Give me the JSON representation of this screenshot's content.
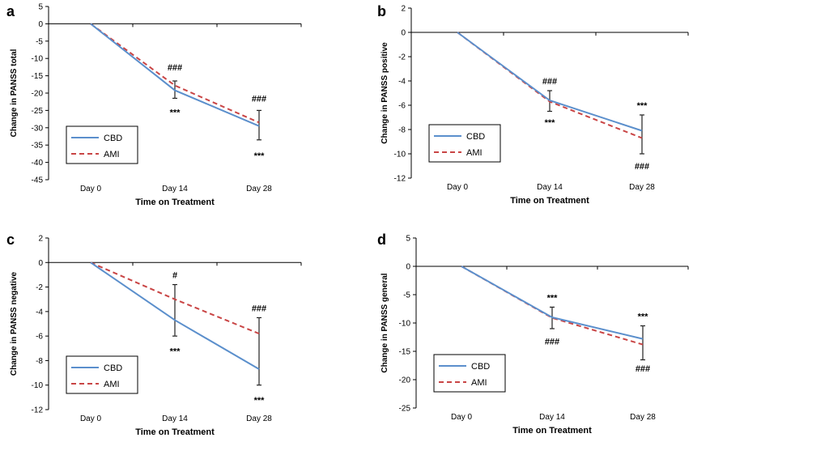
{
  "figure": {
    "colors": {
      "cbd": "#5b8fcc",
      "ami": "#c94545"
    }
  },
  "chart_data": [
    {
      "letter": "a",
      "type": "line",
      "ylabel": "Change in PANSS total",
      "xlabel": "Time on Treatment",
      "categories": [
        "Day 0",
        "Day 14",
        "Day 28"
      ],
      "ylim": [
        -45,
        5
      ],
      "yticks": [
        "5",
        "0",
        "-5",
        "-10",
        "-15",
        "-20",
        "-25",
        "-30",
        "-35",
        "-40",
        "-45"
      ],
      "grid": false,
      "legend_position": "bottom-left",
      "series": [
        {
          "name": "CBD",
          "values": [
            0,
            -19.2,
            -29.5
          ],
          "style": "solid"
        },
        {
          "name": "AMI",
          "values": [
            0,
            -17.8,
            -28.5
          ],
          "style": "dashed"
        }
      ],
      "error_bars": [
        {
          "category": "Day 14",
          "low": -21.5,
          "high": -16.5
        },
        {
          "category": "Day 28",
          "low": -33.5,
          "high": -25.0
        }
      ],
      "annotations": [
        {
          "category": "Day 14",
          "text": "###",
          "y": -12.5
        },
        {
          "category": "Day 14",
          "text": "***",
          "y": -25.5
        },
        {
          "category": "Day 28",
          "text": "###",
          "y": -21.5
        },
        {
          "category": "Day 28",
          "text": "***",
          "y": -38.0
        }
      ]
    },
    {
      "letter": "b",
      "type": "line",
      "ylabel": "Change in PANSS positive",
      "xlabel": "Time on Treatment",
      "categories": [
        "Day 0",
        "Day 14",
        "Day 28"
      ],
      "ylim": [
        -12,
        2
      ],
      "yticks": [
        "2",
        "0",
        "-2",
        "-4",
        "-6",
        "-8",
        "-10",
        "-12"
      ],
      "grid": false,
      "legend_position": "bottom-left",
      "series": [
        {
          "name": "CBD",
          "values": [
            0,
            -5.6,
            -8.1
          ],
          "style": "solid"
        },
        {
          "name": "AMI",
          "values": [
            0,
            -5.7,
            -8.7
          ],
          "style": "dashed"
        }
      ],
      "error_bars": [
        {
          "category": "Day 14",
          "low": -6.5,
          "high": -4.8
        },
        {
          "category": "Day 28",
          "low": -10.0,
          "high": -6.8
        }
      ],
      "annotations": [
        {
          "category": "Day 14",
          "text": "###",
          "y": -4.0
        },
        {
          "category": "Day 14",
          "text": "***",
          "y": -7.4
        },
        {
          "category": "Day 28",
          "text": "***",
          "y": -6.0
        },
        {
          "category": "Day 28",
          "text": "###",
          "y": -11.0
        }
      ]
    },
    {
      "letter": "c",
      "type": "line",
      "ylabel": "Change in PANSS negative",
      "xlabel": "Time on Treatment",
      "categories": [
        "Day 0",
        "Day 14",
        "Day 28"
      ],
      "ylim": [
        -12,
        2
      ],
      "yticks": [
        "2",
        "0",
        "-2",
        "-4",
        "-6",
        "-8",
        "-10",
        "-12"
      ],
      "grid": false,
      "legend_position": "bottom-left",
      "series": [
        {
          "name": "CBD",
          "values": [
            0,
            -4.7,
            -8.7
          ],
          "style": "solid"
        },
        {
          "name": "AMI",
          "values": [
            0,
            -3.0,
            -5.8
          ],
          "style": "dashed"
        }
      ],
      "error_bars": [
        {
          "category": "Day 14",
          "low": -6.0,
          "high": -1.8
        },
        {
          "category": "Day 28",
          "low": -10.0,
          "high": -4.5
        }
      ],
      "annotations": [
        {
          "category": "Day 14",
          "text": "#",
          "y": -1.0
        },
        {
          "category": "Day 14",
          "text": "***",
          "y": -7.2
        },
        {
          "category": "Day 28",
          "text": "###",
          "y": -3.7
        },
        {
          "category": "Day 28",
          "text": "***",
          "y": -11.2
        }
      ]
    },
    {
      "letter": "d",
      "type": "line",
      "ylabel": "Change in PANSS general",
      "xlabel": "Time on Treatment",
      "categories": [
        "Day 0",
        "Day 14",
        "Day 28"
      ],
      "ylim": [
        -25,
        5
      ],
      "yticks": [
        "5",
        "0",
        "-5",
        "-10",
        "-15",
        "-20",
        "-25"
      ],
      "grid": false,
      "legend_position": "bottom-left",
      "series": [
        {
          "name": "CBD",
          "values": [
            0,
            -9.0,
            -12.8
          ],
          "style": "solid"
        },
        {
          "name": "AMI",
          "values": [
            0,
            -9.1,
            -13.8
          ],
          "style": "dashed"
        }
      ],
      "error_bars": [
        {
          "category": "Day 14",
          "low": -11.0,
          "high": -7.2
        },
        {
          "category": "Day 28",
          "low": -16.5,
          "high": -10.5
        }
      ],
      "annotations": [
        {
          "category": "Day 14",
          "text": "***",
          "y": -5.5
        },
        {
          "category": "Day 14",
          "text": "###",
          "y": -13.2
        },
        {
          "category": "Day 28",
          "text": "***",
          "y": -8.8
        },
        {
          "category": "Day 28",
          "text": "###",
          "y": -18.0
        }
      ]
    }
  ]
}
